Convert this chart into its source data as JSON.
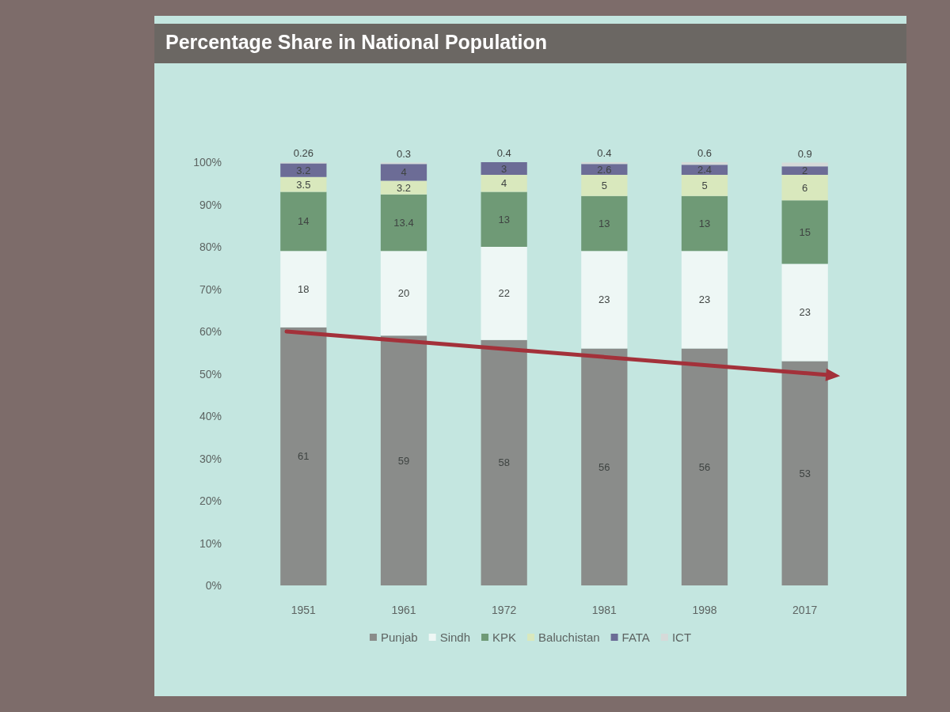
{
  "chart_data": {
    "type": "bar",
    "title": "Percentage Share in National Population",
    "categories": [
      "1951",
      "1961",
      "1972",
      "1981",
      "1998",
      "2017"
    ],
    "stacked": true,
    "series": [
      {
        "name": "Punjab",
        "color": "#8a8c8a",
        "values": [
          61,
          59,
          58,
          56,
          56,
          53
        ]
      },
      {
        "name": "Sindh",
        "color": "#eef7f5",
        "values": [
          18,
          20,
          22,
          23,
          23,
          23
        ]
      },
      {
        "name": "KPK",
        "color": "#6f9a76",
        "values": [
          14,
          13.4,
          13,
          13,
          13,
          15
        ]
      },
      {
        "name": "Baluchistan",
        "color": "#d9e8bd",
        "values": [
          3.5,
          3.2,
          4,
          5,
          5,
          6
        ]
      },
      {
        "name": "FATA",
        "color": "#6c6c96",
        "values": [
          3.2,
          4,
          3,
          2.6,
          2.4,
          2
        ]
      },
      {
        "name": "ICT",
        "color": "#d6dad9",
        "values": [
          0.26,
          0.3,
          0.4,
          0.4,
          0.6,
          0.9
        ]
      }
    ],
    "ylim": [
      0,
      100
    ],
    "yticks": [
      {
        "value": 0,
        "label": "0%"
      },
      {
        "value": 10,
        "label": "10%"
      },
      {
        "value": 20,
        "label": "20%"
      },
      {
        "value": 30,
        "label": "30%"
      },
      {
        "value": 40,
        "label": "40%"
      },
      {
        "value": 50,
        "label": "50%"
      },
      {
        "value": 60,
        "label": "60%"
      },
      {
        "value": 70,
        "label": "70%"
      },
      {
        "value": 80,
        "label": "80%"
      },
      {
        "value": 90,
        "label": "90%"
      },
      {
        "value": 100,
        "label": "100%"
      }
    ],
    "data_labels": true,
    "legend": "bottom",
    "grid": false
  }
}
